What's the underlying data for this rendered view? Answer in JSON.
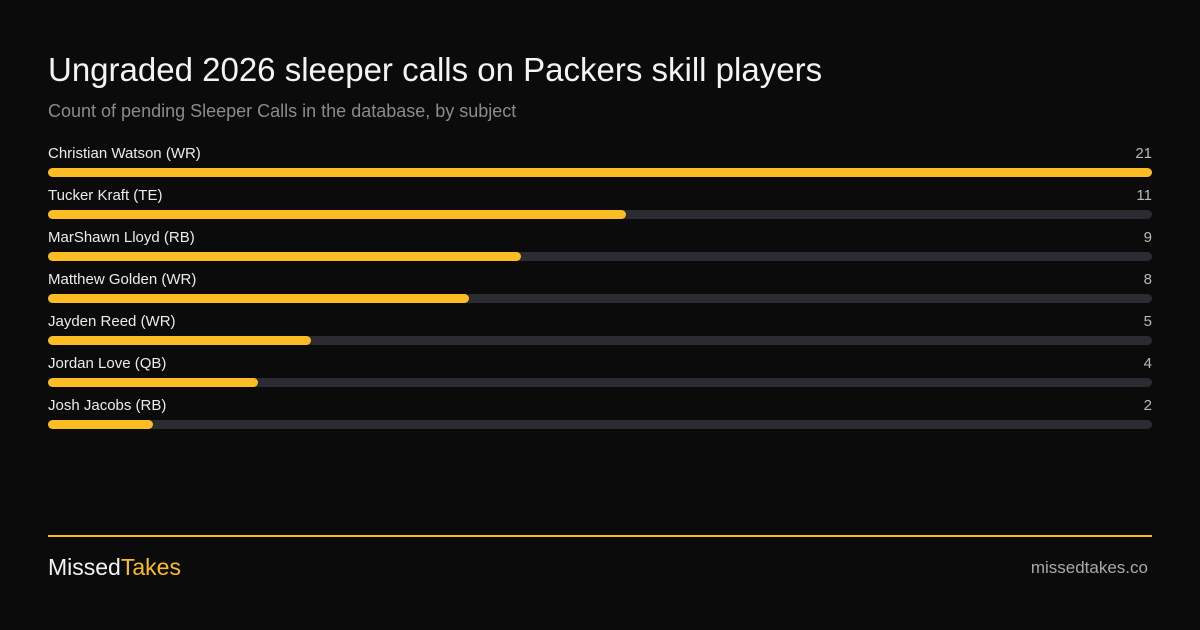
{
  "header": {
    "title": "Ungraded 2026 sleeper calls on Packers skill players",
    "subtitle": "Count of pending Sleeper Calls in the database, by subject"
  },
  "chart_data": {
    "type": "bar",
    "orientation": "horizontal",
    "categories": [
      "Christian Watson (WR)",
      "Tucker Kraft (TE)",
      "MarShawn Lloyd (RB)",
      "Matthew Golden (WR)",
      "Jayden Reed (WR)",
      "Jordan Love (QB)",
      "Josh Jacobs (RB)"
    ],
    "values": [
      21,
      11,
      9,
      8,
      5,
      4,
      2
    ],
    "xlim": [
      0,
      21
    ],
    "grid": false,
    "bar_color": "#fbbd23",
    "track_color": "#2c2b31"
  },
  "footer": {
    "brand_part1": "Missed",
    "brand_part2": "Takes",
    "site": "missedtakes.co"
  },
  "colors": {
    "background": "#0b0b0b",
    "accent": "#fbbd23",
    "subtitle": "#8a8a8f"
  }
}
